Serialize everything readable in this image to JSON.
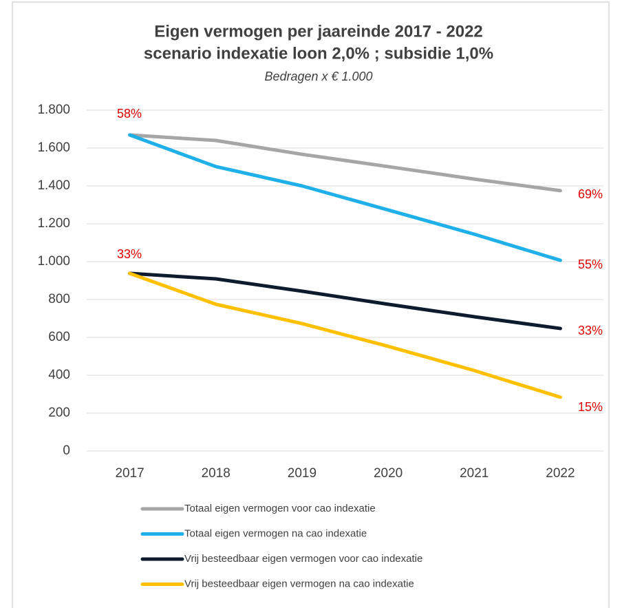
{
  "chart_data": {
    "type": "line",
    "title": "Eigen vermogen per jaareinde 2017 - 2022",
    "subtitle": "scenario indexatie loon 2,0% ; subsidie 1,0%",
    "note": "Bedragen x € 1.000",
    "categories": [
      "2017",
      "2018",
      "2019",
      "2020",
      "2021",
      "2022"
    ],
    "series": [
      {
        "name": "Totaal eigen vermogen voor cao indexatie",
        "color": "#a6a6a6",
        "values": [
          1669,
          1640,
          1567,
          1502,
          1436,
          1375
        ]
      },
      {
        "name": "Totaal eigen vermogen na cao indexatie",
        "color": "#1fb0ea",
        "values": [
          1669,
          1502,
          1400,
          1273,
          1145,
          1007
        ]
      },
      {
        "name": "Vrij besteedbaar eigen vermogen voor cao indexatie",
        "color": "#0d1b2e",
        "values": [
          938,
          909,
          844,
          775,
          709,
          647
        ]
      },
      {
        "name": "Vrij besteedbaar eigen vermogen na cao indexatie",
        "color": "#ffc000",
        "values": [
          938,
          775,
          673,
          553,
          425,
          284
        ]
      }
    ],
    "annotations": [
      "58%",
      "33%",
      "69%",
      "55%",
      "33%",
      "15%"
    ],
    "ylim": [
      0,
      1800
    ],
    "yticks": [
      0,
      200,
      400,
      600,
      800,
      {
        "value": 1000,
        "label": "1.000"
      },
      {
        "value": 1200,
        "label": "1.200"
      },
      {
        "value": 1400,
        "label": "1.400"
      },
      {
        "value": 1600,
        "label": "1.600"
      },
      {
        "value": 1800,
        "label": "1.800"
      }
    ],
    "grid": true,
    "legend": "bottom"
  }
}
